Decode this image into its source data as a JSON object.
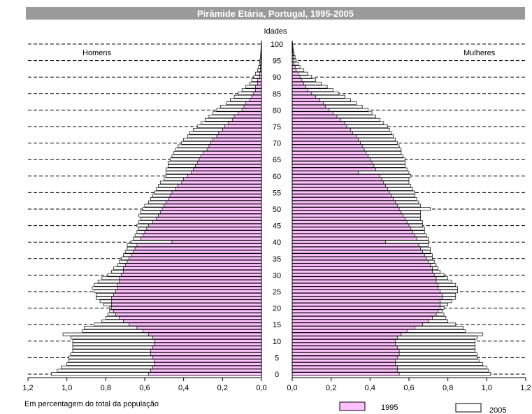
{
  "chart_data": {
    "type": "bar",
    "title": "Pirâmide Etária, Portugal, 1995-2005",
    "y_axis_title": "Idades",
    "left_label": "Homens",
    "right_label": "Mulheres",
    "xlabel": "Em percentagem do total da população",
    "x_ticks_left": [
      "1,2",
      "1,0",
      "0,8",
      "0,6",
      "0,4",
      "0,2",
      "0,0"
    ],
    "x_ticks_right": [
      "0,0",
      "0,2",
      "0,4",
      "0,6",
      "0,8",
      "1,0",
      "1,2"
    ],
    "age_ticks": [
      "0",
      "5",
      "10",
      "15",
      "20",
      "25",
      "30",
      "35",
      "40",
      "45",
      "50",
      "55",
      "60",
      "65",
      "70",
      "75",
      "80",
      "85",
      "90",
      "95",
      "100"
    ],
    "xlim": [
      0,
      1.2
    ],
    "ylim": [
      0,
      100
    ],
    "grid": "dashed-horizontal",
    "legend_placement": "bottom-right",
    "colors": {
      "1995": "#ffc0ff",
      "2005": "#ffffff",
      "title_bar": "#9a9a9a"
    },
    "ages": [
      0,
      1,
      2,
      3,
      4,
      5,
      6,
      7,
      8,
      9,
      10,
      11,
      12,
      13,
      14,
      15,
      16,
      17,
      18,
      19,
      20,
      21,
      22,
      23,
      24,
      25,
      26,
      27,
      28,
      29,
      30,
      31,
      32,
      33,
      34,
      35,
      36,
      37,
      38,
      39,
      40,
      41,
      42,
      43,
      44,
      45,
      46,
      47,
      48,
      49,
      50,
      51,
      52,
      53,
      54,
      55,
      56,
      57,
      58,
      59,
      60,
      61,
      62,
      63,
      64,
      65,
      66,
      67,
      68,
      69,
      70,
      71,
      72,
      73,
      74,
      75,
      76,
      77,
      78,
      79,
      80,
      81,
      82,
      83,
      84,
      85,
      86,
      87,
      88,
      89,
      90,
      91,
      92,
      93,
      94,
      95,
      96,
      97,
      98,
      99,
      100
    ],
    "series": [
      {
        "name": "1995",
        "men": [
          0.58,
          0.57,
          0.56,
          0.55,
          0.55,
          0.56,
          0.57,
          0.57,
          0.56,
          0.55,
          0.55,
          0.56,
          0.58,
          0.61,
          0.64,
          0.68,
          0.71,
          0.73,
          0.75,
          0.76,
          0.77,
          0.77,
          0.77,
          0.77,
          0.76,
          0.75,
          0.74,
          0.74,
          0.73,
          0.73,
          0.72,
          0.71,
          0.71,
          0.7,
          0.69,
          0.68,
          0.67,
          0.66,
          0.65,
          0.64,
          0.46,
          0.62,
          0.61,
          0.6,
          0.59,
          0.58,
          0.56,
          0.54,
          0.53,
          0.52,
          0.51,
          0.5,
          0.49,
          0.48,
          0.47,
          0.46,
          0.44,
          0.43,
          0.41,
          0.4,
          0.38,
          0.36,
          0.35,
          0.34,
          0.33,
          0.32,
          0.31,
          0.3,
          0.28,
          0.27,
          0.26,
          0.25,
          0.23,
          0.22,
          0.2,
          0.19,
          0.17,
          0.15,
          0.14,
          0.12,
          0.1,
          0.09,
          0.08,
          0.06,
          0.05,
          0.04,
          0.03,
          0.03,
          0.02,
          0.02,
          0.01,
          0.01,
          0.005,
          0.005,
          0.004,
          0.003,
          0.002,
          0.002,
          0.001,
          0.001,
          0.001
        ],
        "women": [
          0.55,
          0.54,
          0.54,
          0.53,
          0.53,
          0.54,
          0.55,
          0.55,
          0.54,
          0.53,
          0.53,
          0.54,
          0.56,
          0.59,
          0.63,
          0.67,
          0.7,
          0.72,
          0.74,
          0.75,
          0.76,
          0.76,
          0.76,
          0.77,
          0.77,
          0.76,
          0.75,
          0.75,
          0.74,
          0.74,
          0.73,
          0.72,
          0.72,
          0.71,
          0.7,
          0.69,
          0.68,
          0.67,
          0.66,
          0.65,
          0.48,
          0.64,
          0.63,
          0.62,
          0.61,
          0.6,
          0.59,
          0.58,
          0.57,
          0.56,
          0.55,
          0.54,
          0.53,
          0.52,
          0.51,
          0.5,
          0.49,
          0.48,
          0.47,
          0.46,
          0.45,
          0.34,
          0.43,
          0.42,
          0.41,
          0.4,
          0.39,
          0.38,
          0.37,
          0.36,
          0.35,
          0.34,
          0.33,
          0.31,
          0.3,
          0.28,
          0.27,
          0.25,
          0.23,
          0.21,
          0.19,
          0.17,
          0.16,
          0.14,
          0.12,
          0.1,
          0.08,
          0.07,
          0.06,
          0.05,
          0.04,
          0.03,
          0.02,
          0.015,
          0.01,
          0.008,
          0.006,
          0.004,
          0.003,
          0.002,
          0.001
        ]
      },
      {
        "name": "2005",
        "men": [
          1.08,
          1.05,
          1.03,
          1.0,
          0.99,
          0.99,
          0.98,
          0.97,
          0.97,
          0.97,
          0.97,
          0.98,
          1.02,
          0.92,
          0.91,
          0.86,
          0.82,
          0.8,
          0.79,
          0.78,
          0.78,
          0.81,
          0.83,
          0.85,
          0.85,
          0.86,
          0.87,
          0.86,
          0.84,
          0.82,
          0.79,
          0.77,
          0.76,
          0.74,
          0.73,
          0.72,
          0.71,
          0.7,
          0.69,
          0.69,
          0.67,
          0.66,
          0.65,
          0.64,
          0.63,
          0.64,
          0.63,
          0.62,
          0.63,
          0.62,
          0.61,
          0.6,
          0.58,
          0.57,
          0.56,
          0.55,
          0.54,
          0.53,
          0.52,
          0.5,
          0.49,
          0.49,
          0.49,
          0.48,
          0.48,
          0.47,
          0.46,
          0.45,
          0.44,
          0.43,
          0.41,
          0.4,
          0.38,
          0.37,
          0.35,
          0.33,
          0.31,
          0.29,
          0.27,
          0.25,
          0.23,
          0.21,
          0.18,
          0.16,
          0.14,
          0.12,
          0.1,
          0.08,
          0.06,
          0.05,
          0.04,
          0.03,
          0.02,
          0.015,
          0.01,
          0.008,
          0.006,
          0.004,
          0.003,
          0.002,
          0.001
        ],
        "women": [
          1.02,
          1.01,
          1.0,
          0.98,
          0.96,
          0.95,
          0.95,
          0.94,
          0.94,
          0.94,
          0.94,
          0.95,
          0.98,
          0.89,
          0.88,
          0.84,
          0.8,
          0.79,
          0.78,
          0.77,
          0.78,
          0.8,
          0.82,
          0.84,
          0.84,
          0.85,
          0.85,
          0.84,
          0.82,
          0.8,
          0.78,
          0.76,
          0.75,
          0.74,
          0.73,
          0.72,
          0.72,
          0.71,
          0.71,
          0.7,
          0.7,
          0.7,
          0.69,
          0.68,
          0.68,
          0.67,
          0.67,
          0.66,
          0.66,
          0.66,
          0.71,
          0.66,
          0.65,
          0.64,
          0.63,
          0.63,
          0.62,
          0.61,
          0.6,
          0.6,
          0.61,
          0.6,
          0.59,
          0.58,
          0.58,
          0.58,
          0.57,
          0.56,
          0.56,
          0.55,
          0.54,
          0.53,
          0.52,
          0.51,
          0.5,
          0.49,
          0.47,
          0.45,
          0.43,
          0.41,
          0.39,
          0.36,
          0.33,
          0.3,
          0.27,
          0.24,
          0.21,
          0.18,
          0.15,
          0.12,
          0.1,
          0.08,
          0.06,
          0.04,
          0.03,
          0.02,
          0.015,
          0.01,
          0.006,
          0.004,
          0.002
        ]
      }
    ],
    "legend": [
      {
        "key": "1995",
        "label": "1995"
      },
      {
        "key": "2005",
        "label": "2005"
      }
    ]
  }
}
